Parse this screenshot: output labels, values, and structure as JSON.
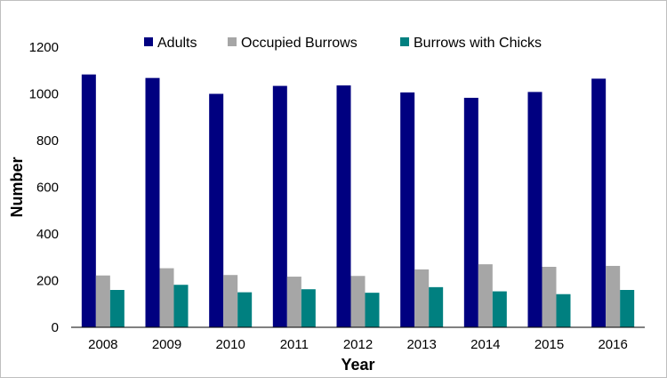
{
  "chart_data": {
    "type": "bar",
    "title": "",
    "xlabel": "Year",
    "ylabel": "Number",
    "ylim": [
      0,
      1200
    ],
    "yticks": [
      0,
      200,
      400,
      600,
      800,
      1000,
      1200
    ],
    "grid": false,
    "legend_position": "top",
    "categories": [
      "2008",
      "2009",
      "2010",
      "2011",
      "2012",
      "2013",
      "2014",
      "2015",
      "2016"
    ],
    "series": [
      {
        "name": "Adults",
        "color": "#000080",
        "values": [
          1083,
          1068,
          1000,
          1034,
          1036,
          1006,
          983,
          1008,
          1065
        ]
      },
      {
        "name": "Occupied Burrows",
        "color": "#a6a6a6",
        "values": [
          222,
          253,
          224,
          217,
          220,
          248,
          270,
          259,
          263
        ]
      },
      {
        "name": "Burrows with Chicks",
        "color": "#008080",
        "values": [
          160,
          182,
          150,
          163,
          148,
          172,
          154,
          142,
          160
        ]
      }
    ]
  }
}
